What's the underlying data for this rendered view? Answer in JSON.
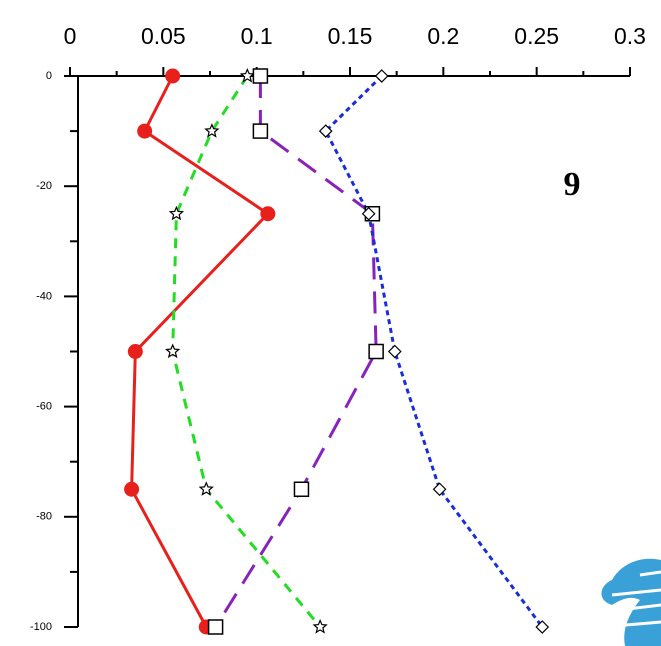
{
  "chart_data": {
    "type": "line",
    "annotation": "9",
    "depths": [
      0,
      -10,
      -25,
      -50,
      -75,
      -100
    ],
    "xlim": [
      0,
      0.3
    ],
    "xticks": [
      0,
      0.05,
      0.1,
      0.15,
      0.2,
      0.25,
      0.3
    ],
    "xminorticks": [
      0.025,
      0.075,
      0.125,
      0.175,
      0.225,
      0.275
    ],
    "ylim": [
      -100,
      0
    ],
    "yticks": [
      0,
      -20,
      -40,
      -60,
      -80,
      -100
    ],
    "yminorticks": [
      -10,
      -30,
      -50,
      -70,
      -90
    ],
    "series": [
      {
        "color": "#e8201c",
        "dash": "solid",
        "marker": "circle",
        "values": [
          0.055,
          0.04,
          0.106,
          0.035,
          0.033,
          0.073
        ]
      },
      {
        "color": "#22dd22",
        "dash": "dashed",
        "marker": "star",
        "values": [
          0.095,
          0.076,
          0.057,
          0.055,
          0.073,
          0.134
        ]
      },
      {
        "color": "#8822bb",
        "dash": "longdash",
        "marker": "square",
        "values": [
          0.102,
          0.102,
          0.162,
          0.164,
          0.124,
          0.078
        ]
      },
      {
        "color": "#1a2ed8",
        "dash": "dotted",
        "marker": "diamond",
        "values": [
          0.167,
          0.137,
          0.16,
          0.174,
          0.198,
          0.253
        ]
      }
    ]
  }
}
